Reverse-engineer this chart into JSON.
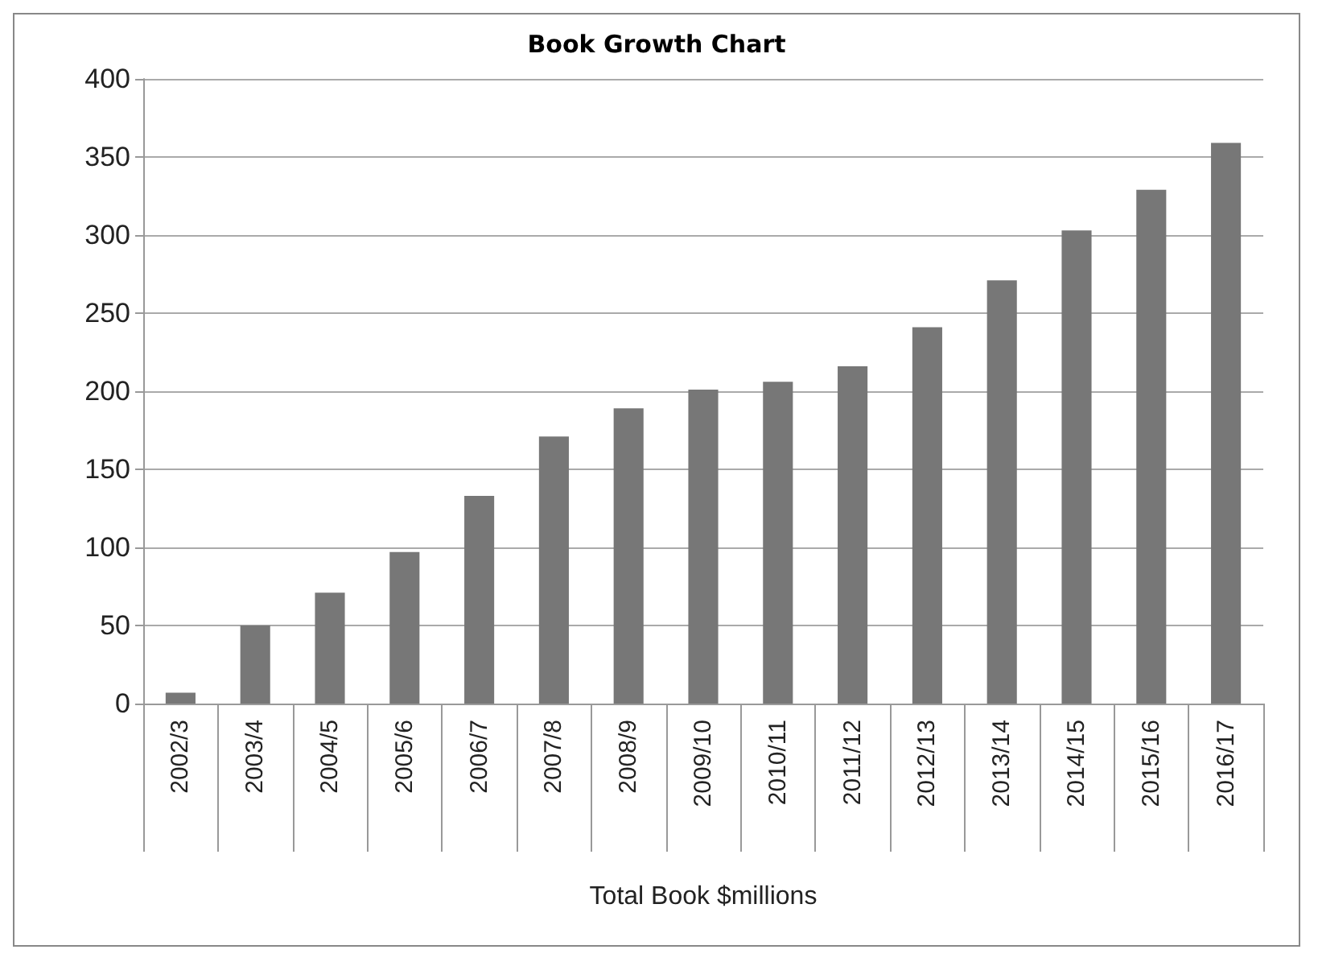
{
  "chart_data": {
    "type": "bar",
    "title": "Book Growth Chart",
    "xlabel": "Total Book $millions",
    "categories": [
      "2002/3",
      "2003/4",
      "2004/5",
      "2005/6",
      "2006/7",
      "2007/8",
      "2008/9",
      "2009/10",
      "2010/11",
      "2011/12",
      "2012/13",
      "2013/14",
      "2014/15",
      "2015/16",
      "2016/17"
    ],
    "values": [
      7,
      50,
      71,
      97,
      133,
      171,
      189,
      201,
      206,
      216,
      241,
      271,
      303,
      329,
      359
    ],
    "color": "#777777",
    "ylim": [
      0,
      400
    ],
    "yticks": [
      0,
      50,
      100,
      150,
      200,
      250,
      300,
      350,
      400
    ],
    "grid": "y"
  }
}
